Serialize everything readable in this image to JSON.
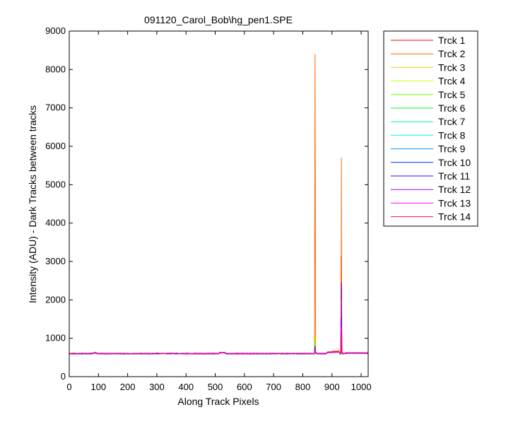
{
  "chart_data": {
    "type": "line",
    "title": "091120_Carol_Bob\\hg_pen1.SPE",
    "xlabel": "Along Track Pixels",
    "ylabel": "Intensity (ADU) - Dark Tracks between tracks",
    "xlim": [
      0,
      1024
    ],
    "ylim": [
      0,
      9000
    ],
    "xticks": [
      0,
      100,
      200,
      300,
      400,
      500,
      600,
      700,
      800,
      900,
      1000
    ],
    "yticks": [
      0,
      1000,
      2000,
      3000,
      4000,
      5000,
      6000,
      7000,
      8000,
      9000
    ],
    "grid": false,
    "legend_position": "outside-right",
    "baseline": 600,
    "series": [
      {
        "name": "Trck 1",
        "color": "#ff0000",
        "peak1": 900,
        "peak2": 1100
      },
      {
        "name": "Trck 2",
        "color": "#ff6600",
        "peak1": 8400,
        "peak2": 5700
      },
      {
        "name": "Trck 3",
        "color": "#ffcc00",
        "peak1": 1100,
        "peak2": 1000
      },
      {
        "name": "Trck 4",
        "color": "#ccff00",
        "peak1": 800,
        "peak2": 900
      },
      {
        "name": "Trck 5",
        "color": "#66ff00",
        "peak1": 950,
        "peak2": 800
      },
      {
        "name": "Trck 6",
        "color": "#00ff33",
        "peak1": 700,
        "peak2": 750
      },
      {
        "name": "Trck 7",
        "color": "#00ff99",
        "peak1": 700,
        "peak2": 700
      },
      {
        "name": "Trck 8",
        "color": "#00ffff",
        "peak1": 680,
        "peak2": 700
      },
      {
        "name": "Trck 9",
        "color": "#0099ff",
        "peak1": 760,
        "peak2": 800
      },
      {
        "name": "Trck 10",
        "color": "#0033ff",
        "peak1": 700,
        "peak2": 900
      },
      {
        "name": "Trck 11",
        "color": "#3300ff",
        "peak1": 800,
        "peak2": 2450
      },
      {
        "name": "Trck 12",
        "color": "#9900ff",
        "peak1": 700,
        "peak2": 2000
      },
      {
        "name": "Trck 13",
        "color": "#ff00ff",
        "peak1": 700,
        "peak2": 1300
      },
      {
        "name": "Trck 14",
        "color": "#ff0066",
        "peak1": 680,
        "peak2": 1200
      }
    ],
    "peak_positions": [
      842,
      932
    ]
  }
}
